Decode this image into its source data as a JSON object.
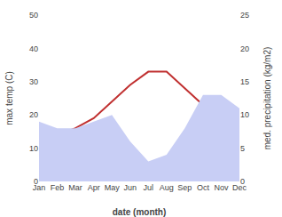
{
  "chart_data": {
    "type": "line",
    "categories": [
      "Jan",
      "Feb",
      "Mar",
      "Apr",
      "May",
      "Jun",
      "Jul",
      "Aug",
      "Sep",
      "Oct",
      "Nov",
      "Dec"
    ],
    "xlabel": "date (month)",
    "ylabel": "max temp (C)",
    "y2label": "med. precipitation (kg/m2)",
    "series": [
      {
        "type": "area",
        "axis": "y2",
        "color": "#c8cef5",
        "values": [
          9,
          8,
          8,
          9,
          10,
          6,
          3,
          4,
          8,
          13,
          13,
          11
        ]
      },
      {
        "type": "line",
        "color": "#c03030",
        "values": [
          13,
          14,
          16,
          19,
          24,
          29,
          33,
          33,
          28,
          23,
          17,
          13
        ]
      }
    ],
    "ylim": [
      0,
      50
    ],
    "yticks": [
      0,
      10,
      20,
      30,
      40,
      50
    ],
    "y2lim": [
      0,
      25
    ],
    "y2ticks": [
      0,
      5,
      10,
      15,
      20,
      25
    ],
    "grid": false
  }
}
